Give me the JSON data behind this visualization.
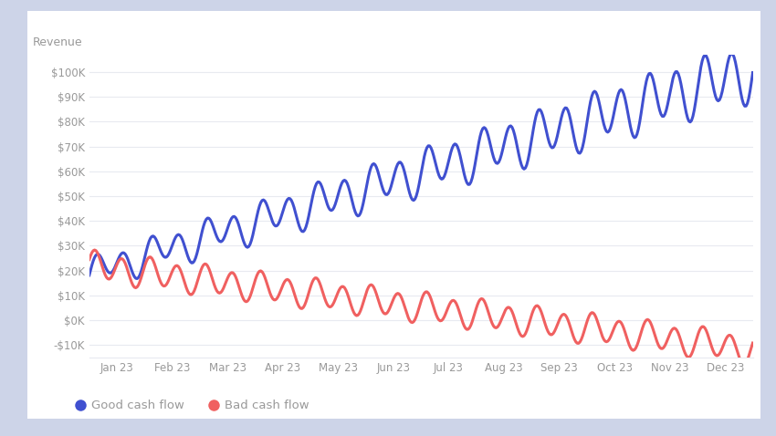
{
  "ylabel": "Revenue",
  "background_outer": "#cdd4e8",
  "background_card": "#ffffff",
  "blue_color": "#4050d0",
  "red_color": "#f06060",
  "grid_color": "#e8eaf0",
  "label_color": "#999999",
  "yticks": [
    -10000,
    0,
    10000,
    20000,
    30000,
    40000,
    50000,
    60000,
    70000,
    80000,
    90000,
    100000
  ],
  "ytick_labels": [
    "-$10K",
    "$0K",
    "$10K",
    "$20K",
    "$30K",
    "$40K",
    "$50K",
    "$60K",
    "$70K",
    "$80K",
    "$90K",
    "$100K"
  ],
  "xtick_labels": [
    "Jan 23",
    "Feb 23",
    "Mar 23",
    "Apr 23",
    "May 23",
    "Jun 23",
    "Jul 23",
    "Aug 23",
    "Sep 23",
    "Oct 23",
    "Nov 23",
    "Dec 23"
  ],
  "legend_labels": [
    "Good cash flow",
    "Bad cash flow"
  ],
  "ylim": [
    -15000,
    107000
  ],
  "num_points": 500
}
